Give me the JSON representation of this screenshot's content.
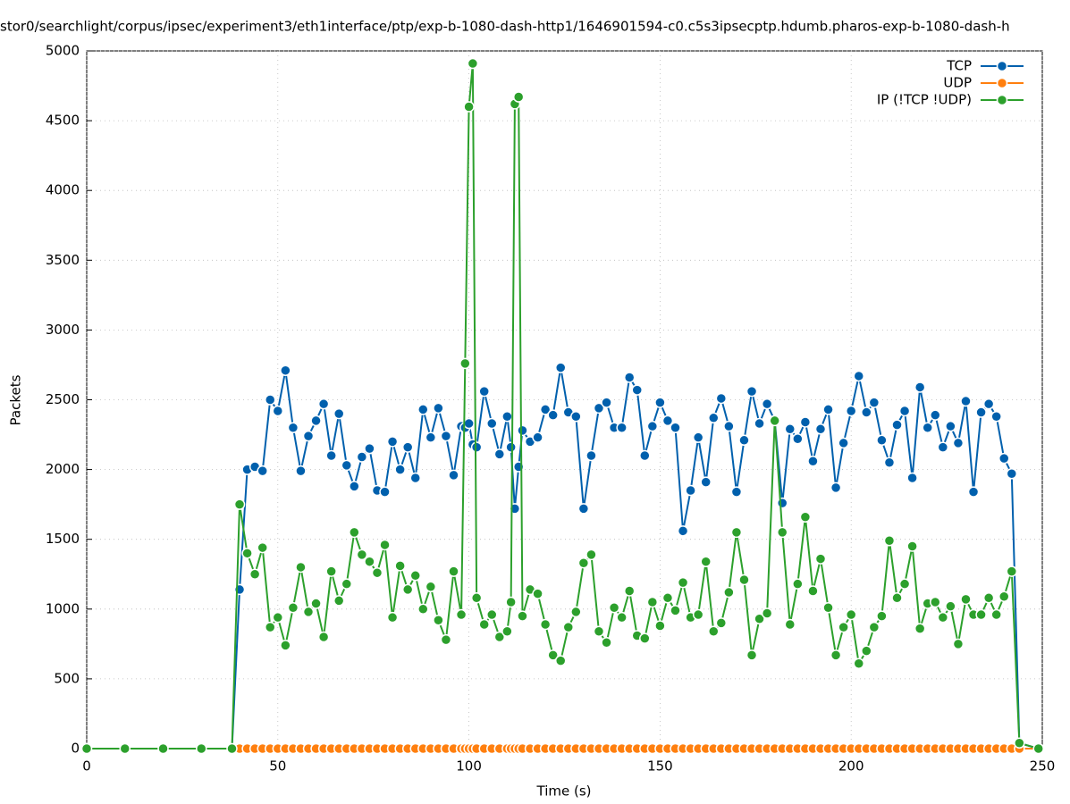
{
  "chart_data": {
    "type": "line",
    "title": "stor0/searchlight/corpus/ipsec/experiment3/eth1interface/ptp/exp-b-1080-dash-http1/1646901594-c0.c5s3ipsecptp.hdumb.pharos-exp-b-1080-dash-h",
    "xlabel": "Time (s)",
    "ylabel": "Packets",
    "xlim": [
      0,
      250
    ],
    "ylim": [
      0,
      5000
    ],
    "xticks": [
      0,
      50,
      100,
      150,
      200,
      250
    ],
    "yticks": [
      0,
      500,
      1000,
      1500,
      2000,
      2500,
      3000,
      3500,
      4000,
      4500,
      5000
    ],
    "grid": true,
    "legend": "upper right",
    "x": [
      0,
      10,
      20,
      30,
      38,
      40,
      42,
      44,
      46,
      48,
      50,
      52,
      54,
      56,
      58,
      60,
      62,
      64,
      66,
      68,
      70,
      72,
      74,
      76,
      78,
      80,
      82,
      84,
      86,
      88,
      90,
      92,
      94,
      96,
      98,
      99,
      100,
      101,
      102,
      104,
      106,
      108,
      110,
      111,
      112,
      113,
      114,
      116,
      118,
      120,
      122,
      124,
      126,
      128,
      130,
      132,
      134,
      136,
      138,
      140,
      142,
      144,
      146,
      148,
      150,
      152,
      154,
      156,
      158,
      160,
      162,
      164,
      166,
      168,
      170,
      172,
      174,
      176,
      178,
      180,
      182,
      184,
      186,
      188,
      190,
      192,
      194,
      196,
      198,
      200,
      202,
      204,
      206,
      208,
      210,
      212,
      214,
      216,
      218,
      220,
      222,
      224,
      226,
      228,
      230,
      232,
      234,
      236,
      238,
      240,
      242,
      244,
      249
    ],
    "series": [
      {
        "name": "TCP",
        "color": "#0060ad",
        "values": [
          0,
          0,
          0,
          0,
          0,
          1140,
          2000,
          2020,
          1990,
          2500,
          2420,
          2710,
          2300,
          1990,
          2240,
          2350,
          2470,
          2100,
          2400,
          2030,
          1880,
          2090,
          2150,
          1850,
          1840,
          2200,
          2000,
          2160,
          1940,
          2430,
          2230,
          2440,
          2240,
          1960,
          2310,
          2300,
          2330,
          2180,
          2160,
          2560,
          2330,
          2110,
          2380,
          2160,
          1720,
          2020,
          2280,
          2200,
          2230,
          2430,
          2390,
          2730,
          2410,
          2380,
          1720,
          2100,
          2440,
          2480,
          2300,
          2300,
          2660,
          2570,
          2100,
          2310,
          2480,
          2350,
          2300,
          1560,
          1850,
          2230,
          1910,
          2370,
          2510,
          2310,
          1840,
          2210,
          2560,
          2330,
          2470,
          2350,
          1760,
          2290,
          2220,
          2340,
          2060,
          2290,
          2430,
          1870,
          2190,
          2420,
          2670,
          2410,
          2480,
          2210,
          2050,
          2320,
          2420,
          1940,
          2590,
          2300,
          2390,
          2160,
          2310,
          2190,
          2490,
          1840,
          2410,
          2470,
          2380,
          2080,
          1970,
          40,
          0
        ]
      },
      {
        "name": "UDP",
        "color": "#ff7f0e",
        "values": [
          0,
          0,
          0,
          0,
          0,
          0,
          0,
          0,
          0,
          0,
          0,
          0,
          0,
          0,
          0,
          0,
          0,
          0,
          0,
          0,
          0,
          0,
          0,
          0,
          0,
          0,
          0,
          0,
          0,
          0,
          0,
          0,
          0,
          0,
          0,
          0,
          0,
          0,
          0,
          0,
          0,
          0,
          0,
          0,
          0,
          0,
          0,
          0,
          0,
          0,
          0,
          0,
          0,
          0,
          0,
          0,
          0,
          0,
          0,
          0,
          0,
          0,
          0,
          0,
          0,
          0,
          0,
          0,
          0,
          0,
          0,
          0,
          0,
          0,
          0,
          0,
          0,
          0,
          0,
          0,
          0,
          0,
          0,
          0,
          0,
          0,
          0,
          0,
          0,
          0,
          0,
          0,
          0,
          0,
          0,
          0,
          0,
          0,
          0,
          0,
          0,
          0,
          0,
          0,
          0,
          0,
          0,
          0,
          0,
          0,
          0,
          0,
          0
        ]
      },
      {
        "name": "IP (!TCP  !UDP)",
        "color": "#2ca02c",
        "values": [
          0,
          0,
          0,
          0,
          0,
          1750,
          1400,
          1250,
          1440,
          870,
          940,
          740,
          1010,
          1300,
          980,
          1040,
          800,
          1270,
          1060,
          1180,
          1550,
          1390,
          1340,
          1260,
          1460,
          940,
          1310,
          1140,
          1240,
          1000,
          1160,
          920,
          780,
          1270,
          960,
          2760,
          4600,
          4910,
          1080,
          890,
          960,
          800,
          840,
          1050,
          4620,
          4670,
          950,
          1140,
          1110,
          890,
          670,
          630,
          870,
          980,
          1330,
          1390,
          840,
          760,
          1010,
          940,
          1130,
          810,
          790,
          1050,
          880,
          1080,
          990,
          1190,
          940,
          960,
          1340,
          840,
          900,
          1120,
          1550,
          1210,
          670,
          930,
          970,
          2350,
          1550,
          890,
          1180,
          1660,
          1130,
          1360,
          1010,
          670,
          870,
          960,
          610,
          700,
          870,
          950,
          1490,
          1080,
          1180,
          1450,
          860,
          1040,
          1050,
          940,
          1020,
          750,
          1070,
          960,
          960,
          1080,
          960,
          1090,
          1270,
          40,
          0
        ]
      }
    ]
  }
}
